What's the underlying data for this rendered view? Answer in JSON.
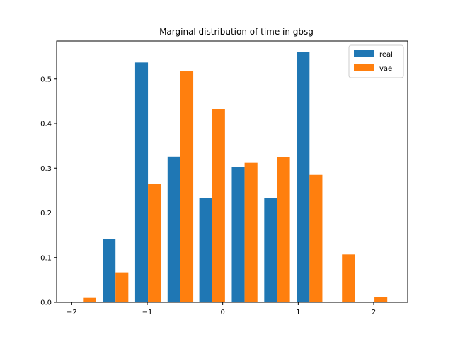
{
  "chart_data": {
    "type": "bar",
    "title": "Marginal distribution of time in gbsg",
    "xlabel": "",
    "ylabel": "",
    "xlim": [
      -2.2,
      2.45
    ],
    "ylim": [
      0,
      0.585
    ],
    "xticks": [
      -2,
      -1,
      0,
      1,
      2
    ],
    "xtick_labels": [
      "−2",
      "−1",
      "0",
      "1",
      "2"
    ],
    "yticks": [
      0.0,
      0.1,
      0.2,
      0.3,
      0.4,
      0.5
    ],
    "ytick_labels": [
      "0.0",
      "0.1",
      "0.2",
      "0.3",
      "0.4",
      "0.5"
    ],
    "bin_centers": [
      -1.85,
      -1.42,
      -0.99,
      -0.56,
      -0.14,
      0.29,
      0.72,
      1.15,
      1.58,
      2.01
    ],
    "bar_width": 0.17,
    "series": [
      {
        "name": "real",
        "color": "#1f77b4",
        "offset": -0.085,
        "values": [
          0.0,
          0.141,
          0.537,
          0.326,
          0.233,
          0.303,
          0.233,
          0.561,
          0.0,
          0.0
        ]
      },
      {
        "name": "vae",
        "color": "#ff7f0e",
        "offset": 0.085,
        "values": [
          0.01,
          0.067,
          0.265,
          0.517,
          0.433,
          0.312,
          0.325,
          0.285,
          0.107,
          0.012
        ]
      }
    ],
    "grid": false,
    "legend_position": "top-right"
  }
}
